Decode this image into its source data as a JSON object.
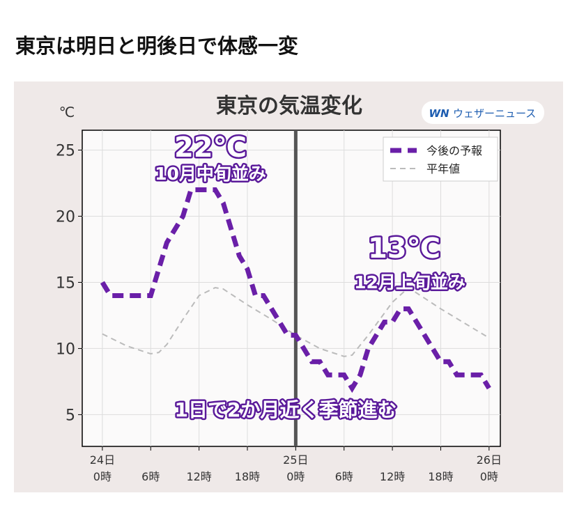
{
  "page_title": "東京は明日と明後日で体感一変",
  "chart_data": {
    "type": "line",
    "title": "東京の気温変化",
    "y_unit": "℃",
    "logo": {
      "mark": "WN",
      "name": "ウェザーニュース"
    },
    "annotations": [
      "22℃",
      "10月中旬並み",
      "13℃",
      "12月上旬並み",
      "1日で2か月近く季節進む"
    ],
    "xlim": [
      -2.5,
      49.4
    ],
    "xticks": [
      {
        "value": 0,
        "label": "24日\n0時"
      },
      {
        "value": 6,
        "label": "6時"
      },
      {
        "value": 12,
        "label": "12時"
      },
      {
        "value": 18,
        "label": "18時"
      },
      {
        "value": 24,
        "label": "25日\n0時"
      },
      {
        "value": 30,
        "label": "6時"
      },
      {
        "value": 36,
        "label": "12時"
      },
      {
        "value": 42,
        "label": "18時"
      },
      {
        "value": 48,
        "label": "26日\n0時"
      }
    ],
    "ylim": [
      2.6,
      26.5
    ],
    "yticks": [
      5,
      10,
      15,
      20,
      25
    ],
    "grid": true,
    "legend": "upper right",
    "series": [
      {
        "name": "今後の予報",
        "color": "#6a1fa8",
        "style": "dashed",
        "x": [
          0,
          1,
          2,
          3,
          4,
          5,
          6,
          7,
          8,
          9,
          10,
          11,
          12,
          13,
          14,
          15,
          16,
          17,
          18,
          19,
          20,
          21,
          22,
          23,
          24,
          25,
          26,
          27,
          28,
          29,
          30,
          31,
          32,
          33,
          34,
          35,
          36,
          37,
          38,
          39,
          40,
          41,
          42,
          43,
          44,
          45,
          46,
          47,
          48
        ],
        "values": [
          15,
          14,
          14,
          14,
          14,
          14,
          14,
          16,
          18,
          19,
          20,
          22,
          22,
          22,
          22,
          21,
          19,
          17,
          16,
          14,
          14,
          13,
          12,
          11,
          11,
          10,
          9,
          9,
          8,
          8,
          8,
          7,
          8,
          10,
          11,
          12,
          12,
          13,
          13,
          12,
          11,
          10,
          9,
          9,
          8,
          8,
          8,
          8,
          7
        ]
      },
      {
        "name": "平年値",
        "color": "#bbbbbb",
        "style": "dotted",
        "x": [
          0,
          3,
          6,
          7,
          8,
          10,
          12,
          14,
          15,
          18,
          21,
          24,
          27,
          30,
          31,
          33,
          36,
          38,
          42,
          45,
          48
        ],
        "values": [
          11.1,
          10.2,
          9.6,
          9.7,
          10.3,
          12.2,
          14,
          14.6,
          14.5,
          13.3,
          12.2,
          11,
          10,
          9.4,
          9.5,
          11,
          13.5,
          14.6,
          13,
          11.9,
          10.8
        ]
      }
    ]
  }
}
